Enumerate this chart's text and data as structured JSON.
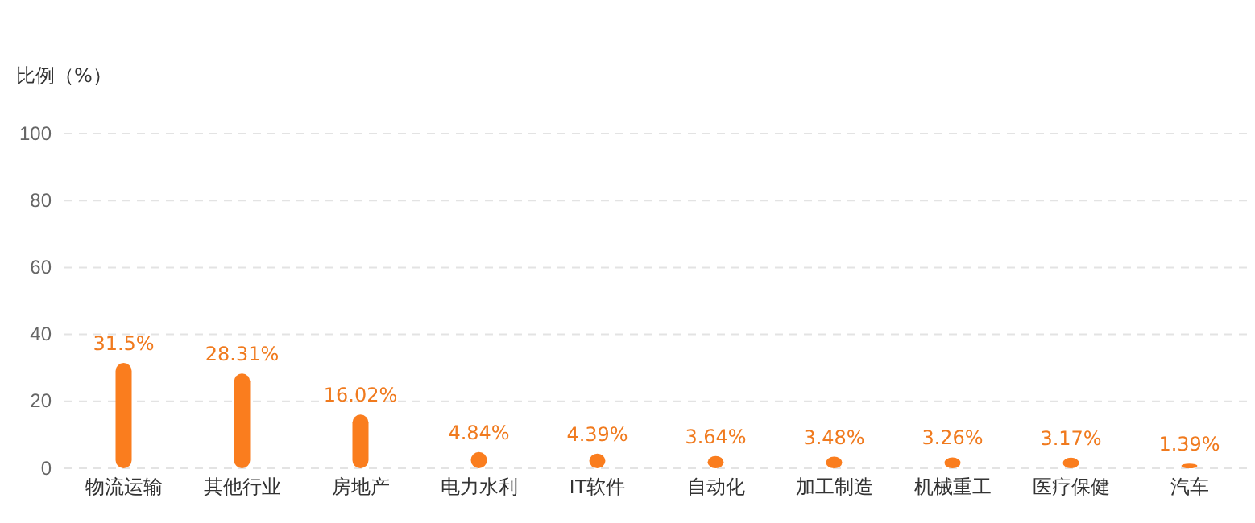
{
  "chart_data": {
    "type": "bar",
    "ylabel": "比例（%）",
    "categories": [
      "物流运输",
      "其他行业",
      "房地产",
      "电力水利",
      "IT软件",
      "自动化",
      "加工制造",
      "机械重工",
      "医疗保健",
      "汽车"
    ],
    "values": [
      31.5,
      28.31,
      16.02,
      4.84,
      4.39,
      3.64,
      3.48,
      3.26,
      3.17,
      1.39
    ],
    "value_labels": [
      "31.5%",
      "28.31%",
      "16.02%",
      "4.84%",
      "4.39%",
      "3.64%",
      "3.48%",
      "3.26%",
      "3.17%",
      "1.39%"
    ],
    "color": "#fa7d1e",
    "ylim": [
      0,
      100
    ],
    "yticks": [
      0,
      20,
      40,
      60,
      80,
      100
    ],
    "grid": "y"
  }
}
